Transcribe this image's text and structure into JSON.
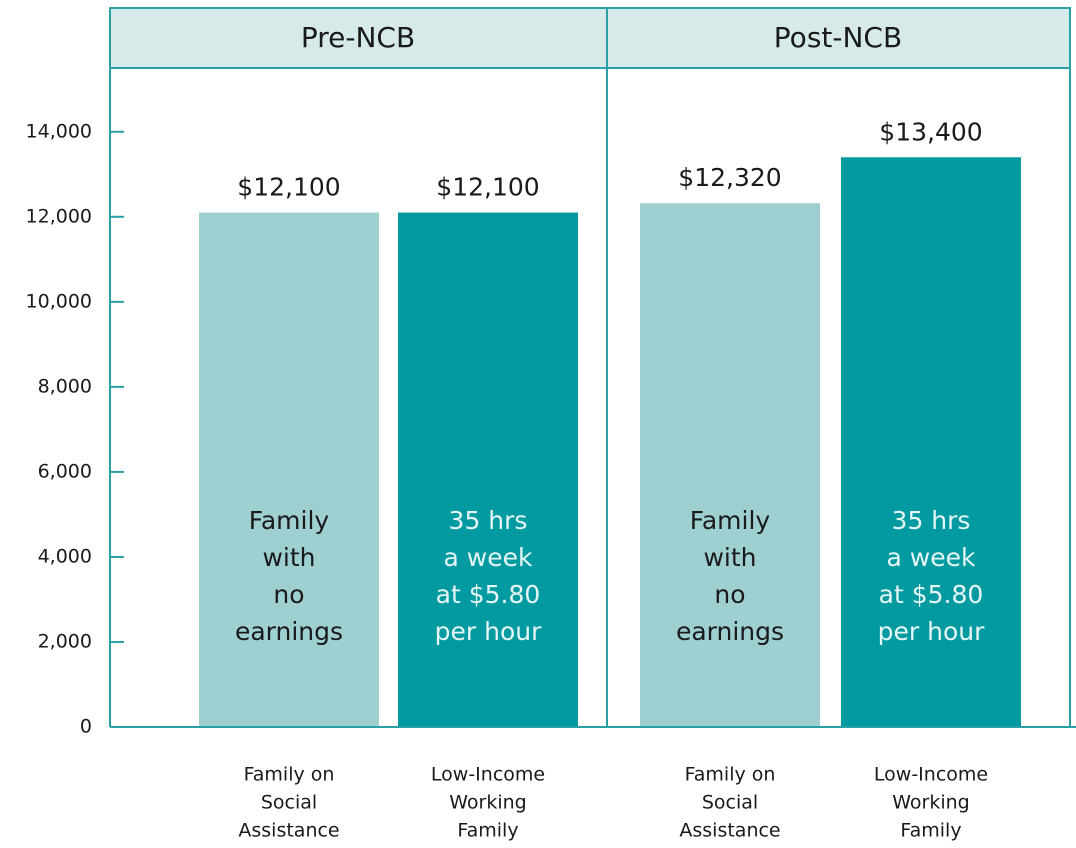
{
  "chart_data": {
    "type": "bar",
    "groups": [
      "Pre-NCB",
      "Post-NCB"
    ],
    "categories": [
      [
        "Family on",
        "Social",
        "Assistance"
      ],
      [
        "Low-Income",
        "Working",
        "Family"
      ],
      [
        "Family on",
        "Social",
        "Assistance"
      ],
      [
        "Low-Income",
        "Working",
        "Family"
      ]
    ],
    "values": [
      12100,
      12100,
      12320,
      13400
    ],
    "value_labels": [
      "$12,100",
      "$12,100",
      "$12,320",
      "$13,400"
    ],
    "bar_notes": [
      [
        "Family",
        "with",
        "no",
        "earnings"
      ],
      [
        "35 hrs",
        "a week",
        "at $5.80",
        "per hour"
      ],
      [
        "Family",
        "with",
        "no",
        "earnings"
      ],
      [
        "35 hrs",
        "a week",
        "at $5.80",
        "per hour"
      ]
    ],
    "colors": [
      "#9ecfd1",
      "#009aa0",
      "#9ecfd1",
      "#009aa0"
    ],
    "ylim": [
      0,
      15500
    ],
    "yticks": [
      0,
      {
        "value": 2000,
        "label": "2,000"
      },
      {
        "value": 4000,
        "label": "4,000"
      },
      {
        "value": 6000,
        "label": "6,000"
      },
      {
        "value": 8000,
        "label": "8,000"
      },
      {
        "value": 10000,
        "label": "10,000"
      },
      {
        "value": 12000,
        "label": "12,000"
      },
      {
        "value": 14000,
        "label": "14,000"
      }
    ]
  }
}
